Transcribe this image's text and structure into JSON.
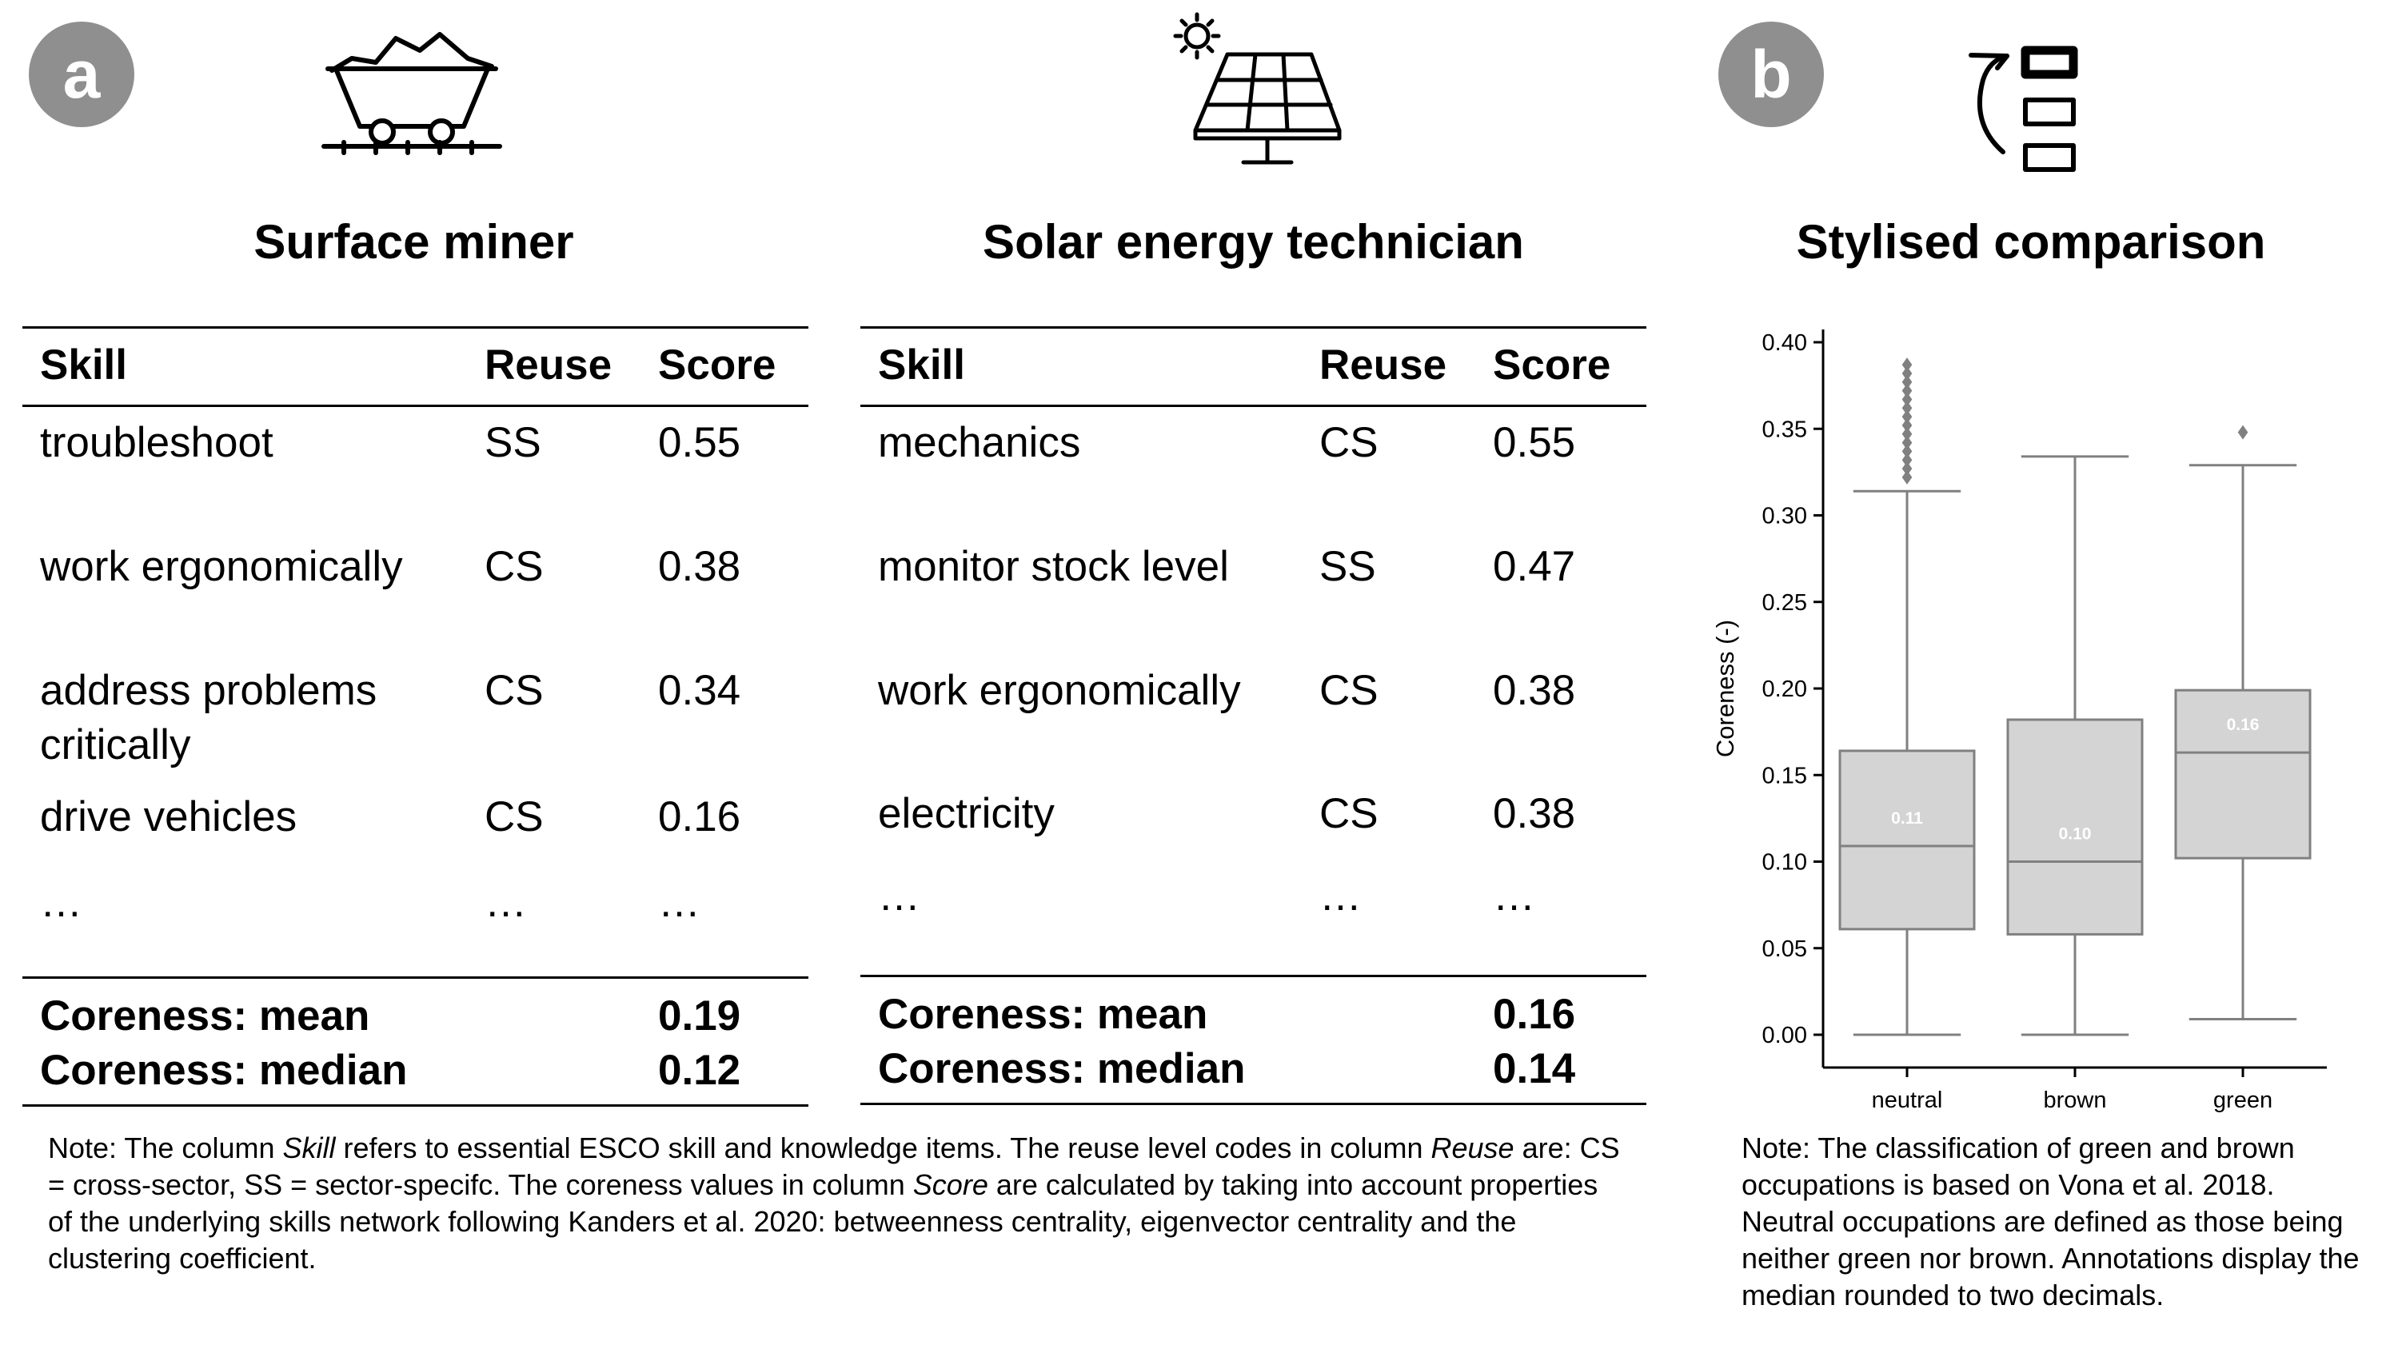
{
  "panels": {
    "a_label": "a",
    "b_label": "b"
  },
  "icons": {
    "mine": "mine-cart-icon",
    "solar": "solar-panel-icon",
    "compare": "ranking-compare-icon"
  },
  "table_miner": {
    "title": "Surface miner",
    "headers": [
      "Skill",
      "Reuse",
      "Score"
    ],
    "rows": [
      {
        "skill": "troubleshoot",
        "reuse": "SS",
        "score": "0.55"
      },
      {
        "skill": "work ergonomically",
        "reuse": "CS",
        "score": "0.38"
      },
      {
        "skill": "address problems",
        "skill2": "critically",
        "reuse": "CS",
        "score": "0.34"
      },
      {
        "skill": "drive vehicles",
        "reuse": "CS",
        "score": "0.16"
      },
      {
        "skill": "…",
        "reuse": "…",
        "score": "…"
      }
    ],
    "summary": [
      {
        "label": "Coreness: mean",
        "value": "0.19"
      },
      {
        "label": "Coreness: median",
        "value": "0.12"
      }
    ]
  },
  "table_solar": {
    "title": "Solar energy technician",
    "headers": [
      "Skill",
      "Reuse",
      "Score"
    ],
    "rows": [
      {
        "skill": "mechanics",
        "reuse": "CS",
        "score": "0.55"
      },
      {
        "skill": "monitor stock level",
        "reuse": "SS",
        "score": "0.47"
      },
      {
        "skill": "work ergonomically",
        "reuse": "CS",
        "score": "0.38"
      },
      {
        "skill": "electricity",
        "reuse": "CS",
        "score": "0.38"
      },
      {
        "skill": "…",
        "reuse": "…",
        "score": "…"
      }
    ],
    "summary": [
      {
        "label": "Coreness: mean",
        "value": "0.16"
      },
      {
        "label": "Coreness: median",
        "value": "0.14"
      }
    ]
  },
  "notes": {
    "left": {
      "p1": "Note: The column ",
      "em1": "Skill",
      "p2": " refers to essential ESCO skill and knowledge items. The reuse level codes in column ",
      "em2": "Reuse",
      "p3": " are: CS = cross-sector, SS = sector-specifc. The coreness values in column ",
      "em3": "Score",
      "p4": " are calculated by taking into account properties of the underlying skills network following Kanders et al. 2020: betweenness centrality, eigenvector centrality and the clustering coefficient."
    },
    "right": "Note: The classification of green and brown occupations is based on Vona et al. 2018. Neutral occupations are defined as those being neither green nor brown. Annotations display the median rounded to two decimals."
  },
  "chart_data": {
    "type": "box",
    "title": "Stylised comparison",
    "xlabel": "",
    "ylabel": "Coreness (-)",
    "ylim": [
      0.0,
      0.4
    ],
    "yticks": [
      "0.00",
      "0.05",
      "0.10",
      "0.15",
      "0.20",
      "0.25",
      "0.30",
      "0.35",
      "0.40"
    ],
    "categories": [
      "neutral",
      "brown",
      "green"
    ],
    "boxes": [
      {
        "name": "neutral",
        "whisker_low": 0.0,
        "q1": 0.061,
        "median": 0.109,
        "q3": 0.164,
        "whisker_high": 0.314,
        "outliers": [
          0.322,
          0.327,
          0.332,
          0.337,
          0.342,
          0.347,
          0.352,
          0.357,
          0.362,
          0.367,
          0.372,
          0.377,
          0.382,
          0.387
        ],
        "annotation": "0.11"
      },
      {
        "name": "brown",
        "whisker_low": 0.0,
        "q1": 0.058,
        "median": 0.1,
        "q3": 0.182,
        "whisker_high": 0.334,
        "outliers": [],
        "annotation": "0.10"
      },
      {
        "name": "green",
        "whisker_low": 0.009,
        "q1": 0.102,
        "median": 0.163,
        "q3": 0.199,
        "whisker_high": 0.329,
        "outliers": [
          0.348
        ],
        "annotation": "0.16"
      }
    ],
    "colors": {
      "box_fill": "#d4d4d4",
      "box_edge": "#808080",
      "annotation": "#ffffff"
    },
    "grid": false,
    "legend": "none"
  }
}
